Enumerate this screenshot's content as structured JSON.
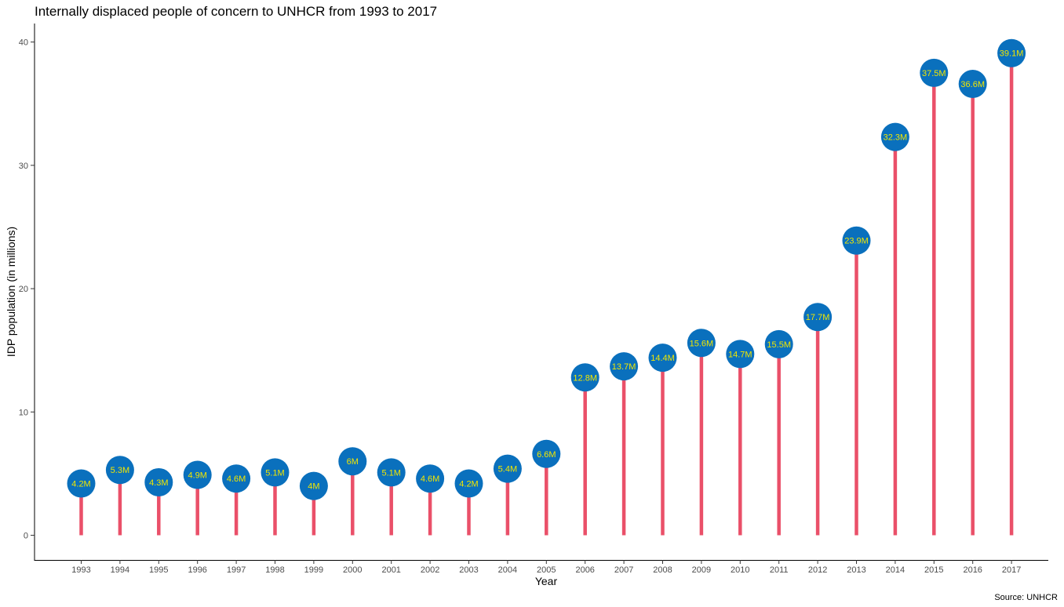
{
  "chart_data": {
    "type": "lollipop",
    "title": "Internally displaced people of concern to UNHCR from 1993 to 2017",
    "xlabel": "Year",
    "ylabel": "IDP population (in millions)",
    "caption": "Source: UNHCR",
    "categories": [
      "1993",
      "1994",
      "1995",
      "1996",
      "1997",
      "1998",
      "1999",
      "2000",
      "2001",
      "2002",
      "2003",
      "2004",
      "2005",
      "2006",
      "2007",
      "2008",
      "2009",
      "2010",
      "2011",
      "2012",
      "2013",
      "2014",
      "2015",
      "2016",
      "2017"
    ],
    "values": [
      4.2,
      5.3,
      4.3,
      4.9,
      4.6,
      5.1,
      4.0,
      6.0,
      5.1,
      4.6,
      4.2,
      5.4,
      6.6,
      12.8,
      13.7,
      14.4,
      15.6,
      14.7,
      15.5,
      17.7,
      23.9,
      32.3,
      37.5,
      36.6,
      39.1
    ],
    "labels": [
      "4.2M",
      "5.3M",
      "4.3M",
      "4.9M",
      "4.6M",
      "5.1M",
      "4M",
      "6M",
      "5.1M",
      "4.6M",
      "4.2M",
      "5.4M",
      "6.6M",
      "12.8M",
      "13.7M",
      "14.4M",
      "15.6M",
      "14.7M",
      "15.5M",
      "17.7M",
      "23.9M",
      "32.3M",
      "37.5M",
      "36.6M",
      "39.1M"
    ],
    "y_ticks": [
      0,
      10,
      20,
      30,
      40
    ],
    "ylim": [
      -2,
      41.5
    ],
    "grid": false,
    "colors": {
      "stem": "#ea5069",
      "point": "#0a70bd",
      "label": "#f2e600",
      "axis": "#000000"
    }
  }
}
